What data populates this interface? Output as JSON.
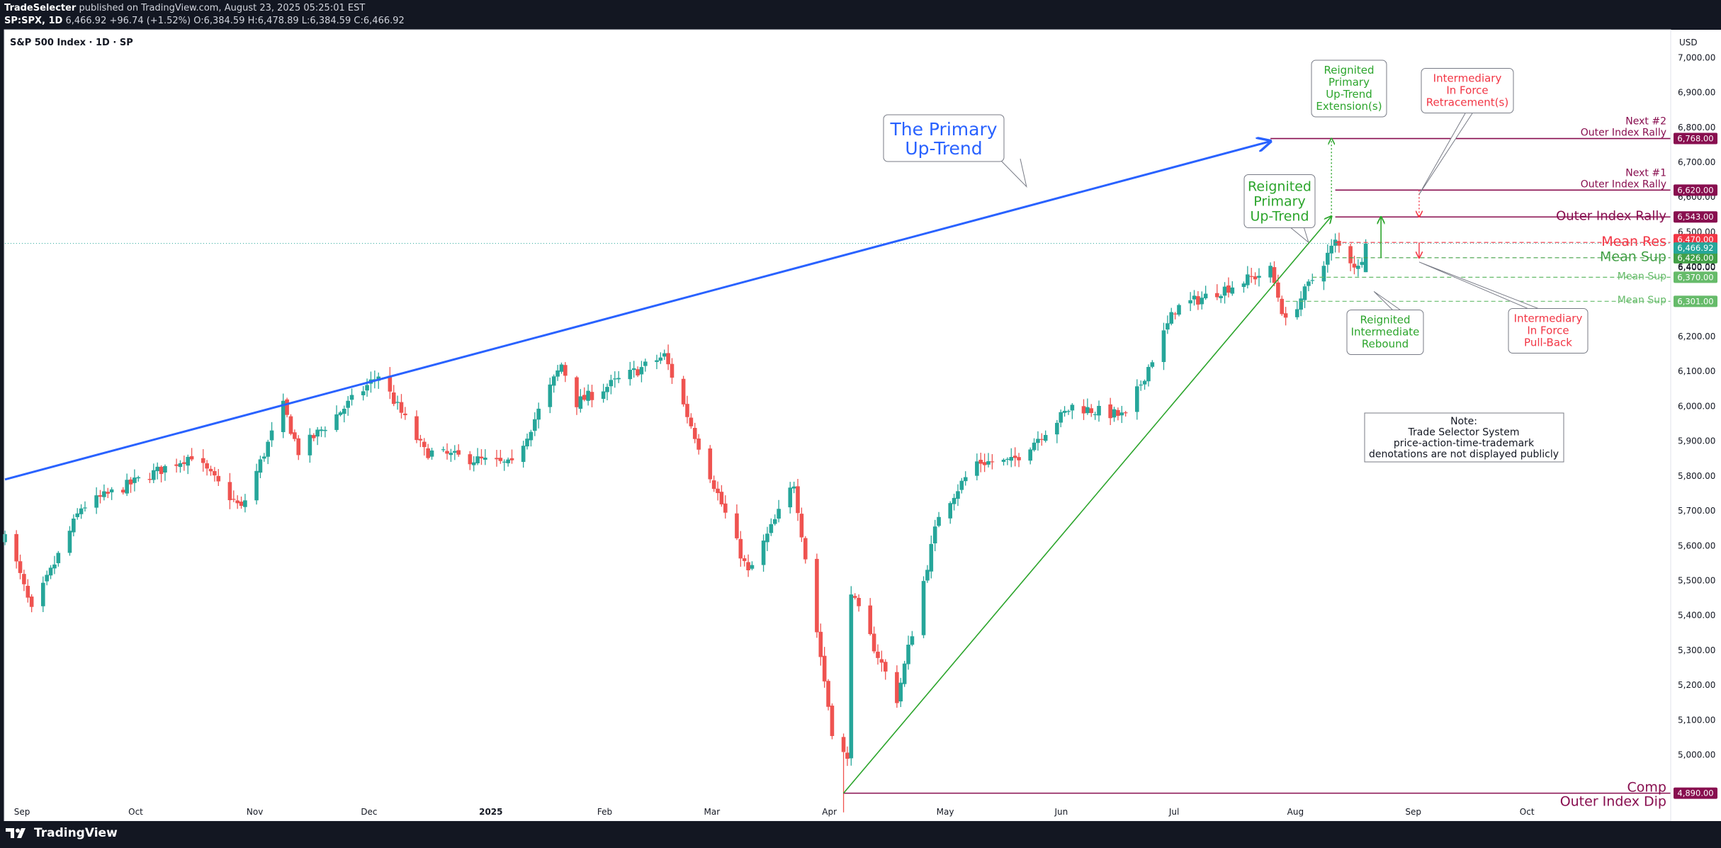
{
  "header": {
    "publisher": "TradeSelecter",
    "published_text": "published on TradingView.com, August 23, 2025 05:25:01 EST",
    "symbol": "SP:SPX, 1D",
    "last": "6,466.92",
    "change": "+96.74 (+1.52%)",
    "ohlc": "O:6,384.59 H:6,478.89 L:6,384.59 C:6,466.92"
  },
  "chart_title": "S&P 500 Index · 1D · SP",
  "currency": "USD",
  "brand": "TradingView",
  "colors": {
    "up": "#26a69a",
    "down": "#ef5350",
    "trend_blue": "#2962ff",
    "trend_green": "#2ca52c",
    "level_purple": "#880e4f",
    "mean_res": "#f23645",
    "mean_sup": "#43a047"
  },
  "chart_data": {
    "type": "candlestick",
    "title": "S&P 500 Index · 1D · SP",
    "ylabel": "USD",
    "ylim": [
      4810,
      7080
    ],
    "y_ticks": [
      "7,000.00",
      "6,900.00",
      "6,800.00",
      "6,700.00",
      "6,600.00",
      "6,500.00",
      "6,400.00",
      "6,300.00",
      "6,200.00",
      "6,100.00",
      "6,000.00",
      "5,900.00",
      "5,800.00",
      "5,700.00",
      "5,600.00",
      "5,500.00",
      "5,400.00",
      "5,300.00",
      "5,200.00",
      "5,100.00",
      "5,000.00"
    ],
    "x_ticks": [
      {
        "label": "Sep",
        "date": "2024-09-01"
      },
      {
        "label": "Oct",
        "date": "2024-10-01"
      },
      {
        "label": "Nov",
        "date": "2024-11-01"
      },
      {
        "label": "Dec",
        "date": "2024-12-01"
      },
      {
        "label": "2025",
        "date": "2025-01-01"
      },
      {
        "label": "Feb",
        "date": "2025-02-01"
      },
      {
        "label": "Mar",
        "date": "2025-03-01"
      },
      {
        "label": "Apr",
        "date": "2025-04-01"
      },
      {
        "label": "May",
        "date": "2025-05-01"
      },
      {
        "label": "Jun",
        "date": "2025-06-01"
      },
      {
        "label": "Jul",
        "date": "2025-07-01"
      },
      {
        "label": "Aug",
        "date": "2025-08-01"
      },
      {
        "label": "Sep",
        "date": "2025-09-01"
      },
      {
        "label": "Oct",
        "date": "2025-10-01"
      }
    ],
    "x_range": [
      "2024-08-30",
      "2025-11-10"
    ],
    "trend_anchors": [
      {
        "date": "2024-08-30",
        "close": 5650
      },
      {
        "date": "2024-09-06",
        "close": 5410
      },
      {
        "date": "2024-09-19",
        "close": 5710
      },
      {
        "date": "2024-10-18",
        "close": 5860
      },
      {
        "date": "2024-10-31",
        "close": 5705
      },
      {
        "date": "2024-11-11",
        "close": 6000
      },
      {
        "date": "2024-11-15",
        "close": 5870
      },
      {
        "date": "2024-12-06",
        "close": 6090
      },
      {
        "date": "2024-12-18",
        "close": 5870
      },
      {
        "date": "2025-01-10",
        "close": 5830
      },
      {
        "date": "2025-01-23",
        "close": 6120
      },
      {
        "date": "2025-01-27",
        "close": 6010
      },
      {
        "date": "2025-02-19",
        "close": 6145
      },
      {
        "date": "2025-03-13",
        "close": 5520
      },
      {
        "date": "2025-03-25",
        "close": 5780
      },
      {
        "date": "2025-04-04",
        "close": 5070
      },
      {
        "date": "2025-04-08",
        "close": 4980
      },
      {
        "date": "2025-04-09",
        "close": 5460
      },
      {
        "date": "2025-04-21",
        "close": 5160
      },
      {
        "date": "2025-05-02",
        "close": 5690
      },
      {
        "date": "2025-05-12",
        "close": 5840
      },
      {
        "date": "2025-05-21",
        "close": 5840
      },
      {
        "date": "2025-06-06",
        "close": 6000
      },
      {
        "date": "2025-06-20",
        "close": 5970
      },
      {
        "date": "2025-07-03",
        "close": 6280
      },
      {
        "date": "2025-07-28",
        "close": 6390
      },
      {
        "date": "2025-08-01",
        "close": 6240
      },
      {
        "date": "2025-08-14",
        "close": 6470
      },
      {
        "date": "2025-08-20",
        "close": 6395
      },
      {
        "date": "2025-08-22",
        "close": 6466.92
      }
    ],
    "primary_uptrend_line": {
      "start": {
        "date": "2024-08-30",
        "value": 5790
      },
      "end": {
        "date": "2025-07-28",
        "value": 6760
      }
    },
    "reignited_uptrend_line": {
      "start": {
        "date": "2025-04-07",
        "value": 4890
      },
      "end": {
        "date": "2025-08-13",
        "value": 6545
      }
    },
    "price_levels": [
      {
        "value": 6768.0,
        "label": "6,768.00",
        "text": [
          "Next #2",
          "Outer Index Rally"
        ],
        "color": "#880e4f",
        "style": "solid"
      },
      {
        "value": 6620.0,
        "label": "6,620.00",
        "text": [
          "Next #1",
          "Outer Index Rally"
        ],
        "color": "#880e4f",
        "style": "solid"
      },
      {
        "value": 6543.0,
        "label": "6,543.00",
        "text": [
          "Outer Index Rally"
        ],
        "color": "#880e4f",
        "style": "solid"
      },
      {
        "value": 6470.0,
        "label": "6,470.00",
        "text": [
          "Mean Res"
        ],
        "color": "#f23645",
        "style": "dashed"
      },
      {
        "value": 6426.0,
        "label": "6,426.00",
        "text": [
          "Mean Sup"
        ],
        "color": "#43a047",
        "style": "dashed"
      },
      {
        "value": 6370.0,
        "label": "6,370.00",
        "text": [
          "Mean Sup"
        ],
        "color": "#66bb6a",
        "style": "dashed"
      },
      {
        "value": 6301.0,
        "label": "6,301.00",
        "text": [
          "Mean Sup"
        ],
        "color": "#66bb6a",
        "style": "dashed"
      },
      {
        "value": 4890.0,
        "label": "4,890.00",
        "text": [
          "Comp",
          "Outer Index Dip"
        ],
        "color": "#880e4f",
        "style": "solid"
      }
    ],
    "last_price": {
      "value": 6466.92,
      "label": "6,466.92"
    },
    "y_axis_extra": [
      "6,400.00"
    ]
  },
  "annotations": {
    "primary_uptrend": [
      "The Primary",
      "Up-Trend"
    ],
    "reignited_primary": [
      "Reignited",
      "Primary",
      "Up-Trend"
    ],
    "reignited_extension": [
      "Reignited",
      "Primary",
      "Up-Trend",
      "Extension(s)"
    ],
    "intermediary_retracement": [
      "Intermediary",
      "In Force",
      "Retracement(s)"
    ],
    "reignited_rebound": [
      "Reignited",
      "Intermediate",
      "Rebound"
    ],
    "intermediary_pullback": [
      "Intermediary",
      "In Force",
      "Pull-Back"
    ],
    "note": [
      "Note:",
      "Trade Selector System",
      "price-action-time-trademark",
      "denotations are not displayed publicly"
    ]
  }
}
